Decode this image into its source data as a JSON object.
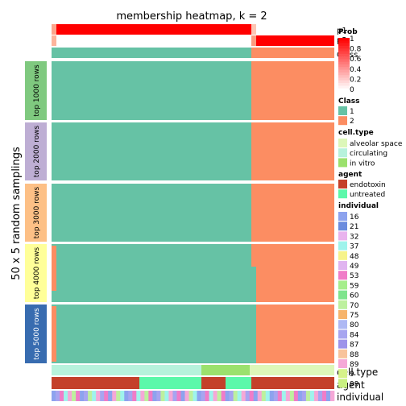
{
  "chart_data": {
    "type": "heatmap",
    "title": "membership heatmap, k = 2",
    "ylabel": "50 x 5 random samplings",
    "top_annotations": [
      "p1",
      "p2",
      "Class"
    ],
    "bottom_annotations": [
      "cell.type",
      "agent",
      "individual"
    ],
    "row_groups": [
      {
        "label": "top 1000 rows",
        "color": "#7FC97F"
      },
      {
        "label": "top 2000 rows",
        "color": "#BEAED4"
      },
      {
        "label": "top 3000 rows",
        "color": "#FDC086"
      },
      {
        "label": "top 4000 rows",
        "color": "#FFFF99"
      },
      {
        "label": "top 5000 rows",
        "color": "#386CB0"
      }
    ],
    "class_colors": {
      "1": "#66C2A5",
      "2": "#FC8D62"
    },
    "class_columns": {
      "1": 50,
      "2": 19
    },
    "legends": {
      "prob": {
        "title": "Prob",
        "ticks": [
          "1",
          "0.8",
          "0.6",
          "0.4",
          "0.2",
          "0"
        ]
      },
      "class": {
        "title": "Class",
        "items": [
          {
            "label": "1",
            "color": "#66C2A5"
          },
          {
            "label": "2",
            "color": "#FC8D62"
          }
        ]
      },
      "cell_type": {
        "title": "cell.type",
        "items": [
          {
            "label": "alveolar space",
            "color": "#DDF7B9"
          },
          {
            "label": "circulating",
            "color": "#B7F2DC"
          },
          {
            "label": "in vitro",
            "color": "#9BE16D"
          }
        ]
      },
      "agent": {
        "title": "agent",
        "items": [
          {
            "label": "endotoxin",
            "color": "#C4402A"
          },
          {
            "label": "untreated",
            "color": "#5BF8AA"
          }
        ]
      },
      "individual": {
        "title": "individual",
        "items": [
          {
            "label": "16",
            "color": "#8DA3EE"
          },
          {
            "label": "21",
            "color": "#6C8CDE"
          },
          {
            "label": "32",
            "color": "#E9B3EE"
          },
          {
            "label": "37",
            "color": "#9FF3EC"
          },
          {
            "label": "48",
            "color": "#F6F38A"
          },
          {
            "label": "49",
            "color": "#E0B4F0"
          },
          {
            "label": "53",
            "color": "#F07CC8"
          },
          {
            "label": "59",
            "color": "#A6EE8C"
          },
          {
            "label": "60",
            "color": "#7EE48E"
          },
          {
            "label": "70",
            "color": "#BDF09E"
          },
          {
            "label": "75",
            "color": "#F6B46C"
          },
          {
            "label": "80",
            "color": "#AEB8F4"
          },
          {
            "label": "84",
            "color": "#A7A5F0"
          },
          {
            "label": "87",
            "color": "#9D93EA"
          },
          {
            "label": "88",
            "color": "#F8C39C"
          },
          {
            "label": "89",
            "color": "#F5A8D7"
          },
          {
            "label": "9",
            "color": "#D6F28A"
          },
          {
            "label": "99",
            "color": "#C8F080"
          }
        ]
      }
    }
  }
}
